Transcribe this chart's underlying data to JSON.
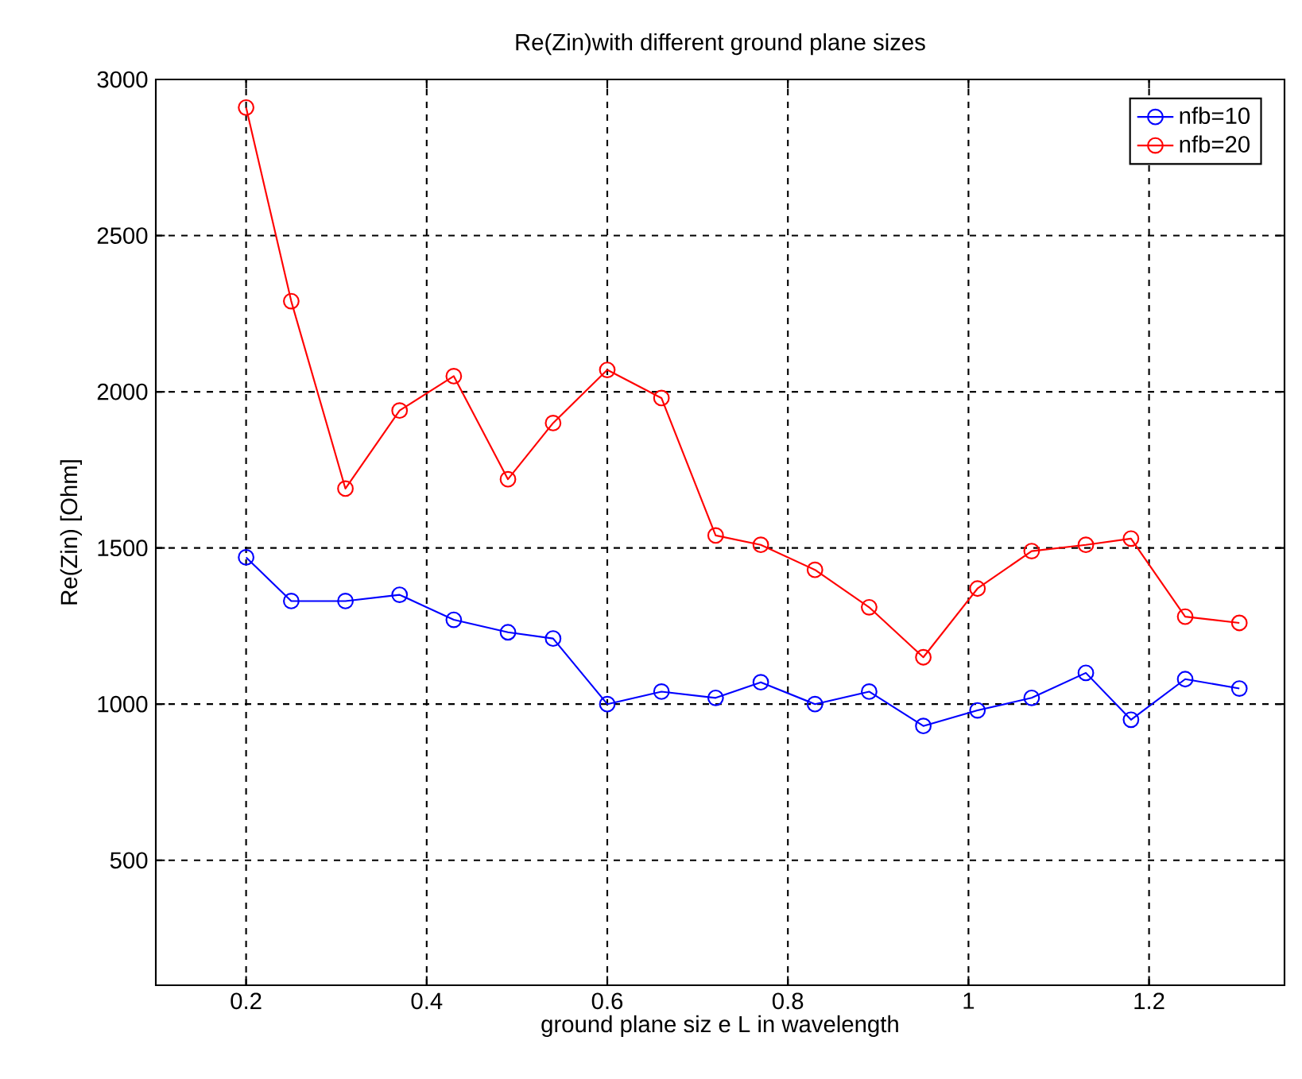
{
  "chart_data": {
    "type": "line",
    "title": "Re(Zin)with different ground plane sizes",
    "xlabel": "ground plane siz e L in wavelength",
    "ylabel": "Re(Zin) [Ohm]",
    "x": [
      0.2,
      0.25,
      0.31,
      0.37,
      0.43,
      0.49,
      0.54,
      0.6,
      0.66,
      0.72,
      0.77,
      0.83,
      0.89,
      0.95,
      1.01,
      1.07,
      1.13,
      1.18,
      1.24,
      1.3
    ],
    "series": [
      {
        "name": "nfb=10",
        "color": "#0000ff",
        "values": [
          1470,
          1330,
          1330,
          1350,
          1270,
          1230,
          1210,
          1000,
          1040,
          1020,
          1070,
          1000,
          1040,
          930,
          980,
          1020,
          1100,
          950,
          1080,
          1050
        ]
      },
      {
        "name": "nfb=20",
        "color": "#ff0000",
        "values": [
          2910,
          2290,
          1690,
          1940,
          2050,
          1720,
          1900,
          2070,
          1980,
          1540,
          1510,
          1430,
          1310,
          1150,
          1370,
          1490,
          1510,
          1530,
          1280,
          1260
        ]
      }
    ],
    "xlim": [
      0.1,
      1.35
    ],
    "ylim": [
      100,
      3000
    ],
    "xticks": [
      0.2,
      0.4,
      0.6,
      0.8,
      1,
      1.2
    ],
    "yticks": [
      500,
      1000,
      1500,
      2000,
      2500,
      3000
    ],
    "grid": true,
    "legend": "top right",
    "marker": "circle",
    "line_style": "solid"
  }
}
